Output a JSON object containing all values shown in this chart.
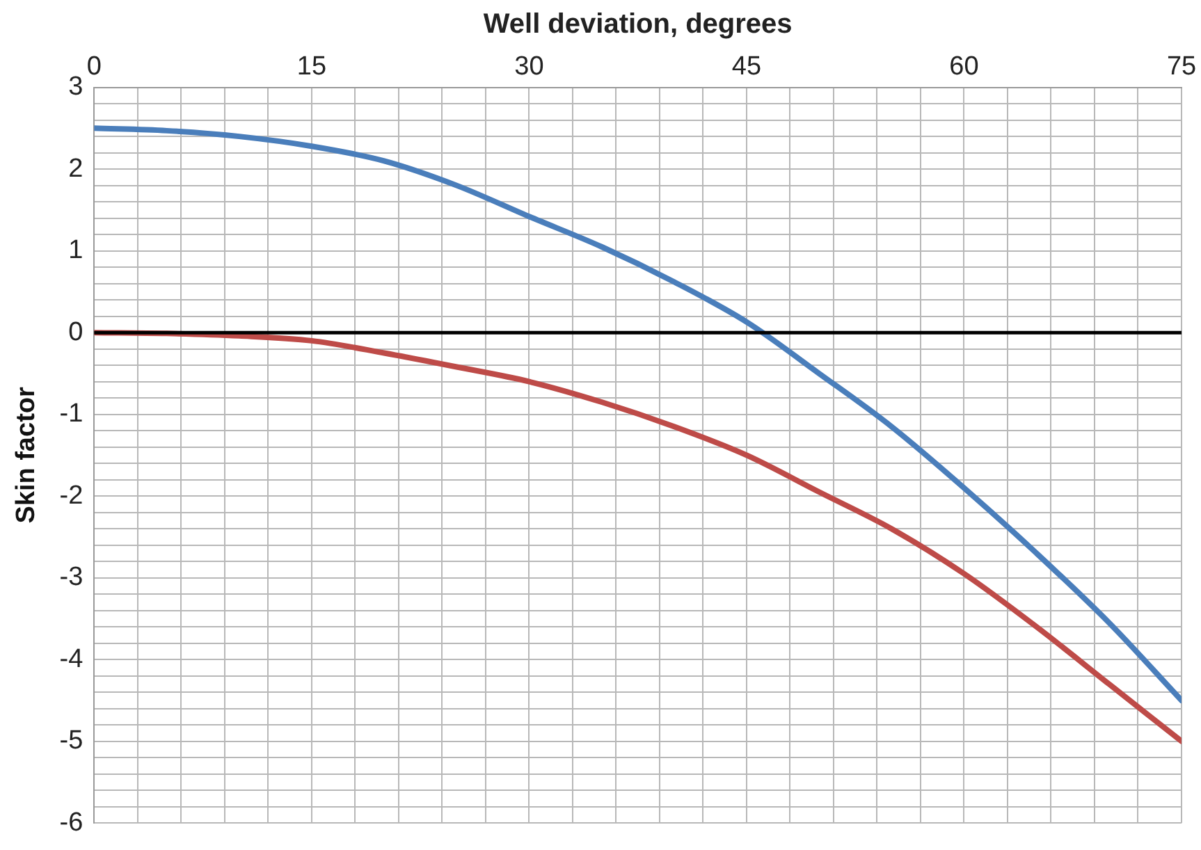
{
  "chart_data": {
    "type": "line",
    "xlabel": "Well deviation, degrees",
    "ylabel": "Skin factor",
    "x": [
      0,
      5,
      10,
      15,
      20,
      25,
      30,
      35,
      40,
      45,
      50,
      55,
      60,
      65,
      70,
      75
    ],
    "series": [
      {
        "color": "#4a7ebb",
        "values": [
          2.5,
          2.47,
          2.4,
          2.28,
          2.1,
          1.8,
          1.42,
          1.05,
          0.62,
          0.13,
          -0.5,
          -1.15,
          -1.9,
          -2.7,
          -3.55,
          -4.5
        ]
      },
      {
        "color": "#be4b48",
        "values": [
          0,
          -0.01,
          -0.04,
          -0.1,
          -0.25,
          -0.42,
          -0.6,
          -0.85,
          -1.15,
          -1.5,
          -1.95,
          -2.4,
          -2.95,
          -3.6,
          -4.3,
          -5.0
        ]
      }
    ],
    "xlim": [
      0,
      75
    ],
    "xticks": [
      0,
      {
        "value": 3,
        "label": null
      },
      {
        "value": 6,
        "label": null
      },
      {
        "value": 9,
        "label": null
      },
      {
        "value": 12,
        "label": null
      },
      15,
      {
        "value": 18,
        "label": null
      },
      {
        "value": 21,
        "label": null
      },
      {
        "value": 24,
        "label": null
      },
      {
        "value": 27,
        "label": null
      },
      30,
      {
        "value": 33,
        "label": null
      },
      {
        "value": 36,
        "label": null
      },
      {
        "value": 39,
        "label": null
      },
      {
        "value": 42,
        "label": null
      },
      45,
      {
        "value": 48,
        "label": null
      },
      {
        "value": 51,
        "label": null
      },
      {
        "value": 54,
        "label": null
      },
      {
        "value": 57,
        "label": null
      },
      60,
      {
        "value": 63,
        "label": null
      },
      {
        "value": 66,
        "label": null
      },
      {
        "value": 69,
        "label": null
      },
      {
        "value": 72,
        "label": null
      },
      75
    ],
    "ylim": [
      -6,
      3
    ],
    "yticks": [
      -6,
      {
        "value": -5.8,
        "label": null
      },
      {
        "value": -5.6,
        "label": null
      },
      {
        "value": -5.4,
        "label": null
      },
      {
        "value": -5.2,
        "label": null
      },
      -5,
      {
        "value": -4.8,
        "label": null
      },
      {
        "value": -4.6,
        "label": null
      },
      {
        "value": -4.4,
        "label": null
      },
      {
        "value": -4.2,
        "label": null
      },
      -4,
      {
        "value": -3.8,
        "label": null
      },
      {
        "value": -3.6,
        "label": null
      },
      {
        "value": -3.4,
        "label": null
      },
      {
        "value": -3.2,
        "label": null
      },
      -3,
      {
        "value": -2.8,
        "label": null
      },
      {
        "value": -2.6,
        "label": null
      },
      {
        "value": -2.4,
        "label": null
      },
      {
        "value": -2.2,
        "label": null
      },
      -2,
      {
        "value": -1.8,
        "label": null
      },
      {
        "value": -1.6,
        "label": null
      },
      {
        "value": -1.4,
        "label": null
      },
      {
        "value": -1.2,
        "label": null
      },
      -1,
      {
        "value": -0.8,
        "label": null
      },
      {
        "value": -0.6,
        "label": null
      },
      {
        "value": -0.4,
        "label": null
      },
      {
        "value": -0.2,
        "label": null
      },
      0,
      {
        "value": 0.2,
        "label": null
      },
      {
        "value": 0.4,
        "label": null
      },
      {
        "value": 0.6,
        "label": null
      },
      {
        "value": 0.8,
        "label": null
      },
      1,
      {
        "value": 1.2,
        "label": null
      },
      {
        "value": 1.4,
        "label": null
      },
      {
        "value": 1.6,
        "label": null
      },
      {
        "value": 1.8,
        "label": null
      },
      2,
      {
        "value": 2.2,
        "label": null
      },
      {
        "value": 2.4,
        "label": null
      },
      {
        "value": 2.6,
        "label": null
      },
      {
        "value": 2.8,
        "label": null
      },
      3
    ],
    "grid": true,
    "legend": false,
    "marker": "none",
    "line_style": "solid",
    "ref_lines": [
      {
        "axis": "y",
        "value": 0,
        "color": "#000000"
      }
    ]
  }
}
